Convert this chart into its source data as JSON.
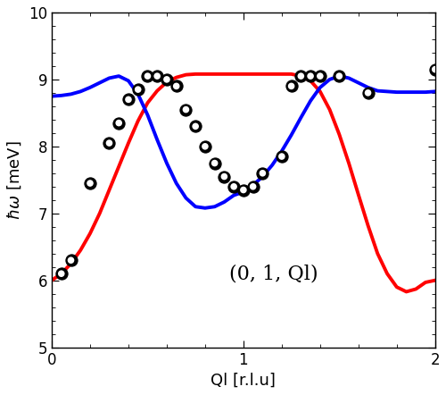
{
  "title": "",
  "xlabel": "Ql [r.l.u]",
  "ylabel": "$\\hbar\\omega$ [meV]",
  "annotation": "(0, 1, Ql)",
  "xlim": [
    0,
    2
  ],
  "ylim": [
    5,
    10
  ],
  "xticks": [
    0,
    1,
    2
  ],
  "yticks": [
    5,
    6,
    7,
    8,
    9,
    10
  ],
  "red_line_color": "#ff0000",
  "blue_line_color": "#0000ff",
  "scatter_x": [
    0.05,
    0.1,
    0.2,
    0.3,
    0.35,
    0.4,
    0.45,
    0.5,
    0.55,
    0.6,
    0.65,
    0.7,
    0.75,
    0.8,
    0.85,
    0.9,
    0.95,
    1.0,
    1.05,
    1.1,
    1.2,
    1.25,
    1.3,
    1.35,
    1.4,
    1.5,
    1.65,
    2.0
  ],
  "scatter_y": [
    6.1,
    6.3,
    7.45,
    8.05,
    8.35,
    8.7,
    8.85,
    9.05,
    9.05,
    9.0,
    8.9,
    8.55,
    8.3,
    8.0,
    7.75,
    7.55,
    7.4,
    7.35,
    7.4,
    7.6,
    7.85,
    8.9,
    9.05,
    9.05,
    9.05,
    9.05,
    8.8,
    9.15
  ],
  "red_x": [
    0.0,
    0.05,
    0.1,
    0.15,
    0.2,
    0.25,
    0.3,
    0.35,
    0.4,
    0.45,
    0.5,
    0.55,
    0.6,
    0.65,
    0.7,
    0.75,
    0.8,
    0.85,
    0.9,
    0.95,
    1.0,
    1.05,
    1.1,
    1.15,
    1.2,
    1.25,
    1.3,
    1.35,
    1.4,
    1.45,
    1.5,
    1.55,
    1.6,
    1.65,
    1.7,
    1.75,
    1.8,
    1.85,
    1.9,
    1.95,
    2.0
  ],
  "red_y": [
    6.0,
    6.1,
    6.25,
    6.45,
    6.7,
    7.0,
    7.35,
    7.7,
    8.05,
    8.38,
    8.65,
    8.83,
    8.96,
    9.03,
    9.07,
    9.08,
    9.08,
    9.08,
    9.08,
    9.08,
    9.08,
    9.08,
    9.08,
    9.08,
    9.08,
    9.08,
    9.05,
    8.98,
    8.82,
    8.55,
    8.18,
    7.75,
    7.28,
    6.82,
    6.4,
    6.1,
    5.9,
    5.83,
    5.87,
    5.97,
    6.0
  ],
  "blue_x": [
    0.0,
    0.05,
    0.1,
    0.15,
    0.2,
    0.25,
    0.3,
    0.35,
    0.4,
    0.45,
    0.5,
    0.55,
    0.6,
    0.65,
    0.7,
    0.75,
    0.8,
    0.85,
    0.9,
    0.95,
    1.0,
    1.05,
    1.1,
    1.15,
    1.2,
    1.25,
    1.3,
    1.35,
    1.4,
    1.45,
    1.5,
    1.55,
    1.6,
    1.65,
    1.7,
    1.75,
    1.8,
    1.85,
    1.9,
    1.95,
    2.0
  ],
  "blue_y": [
    8.75,
    8.76,
    8.78,
    8.82,
    8.88,
    8.95,
    9.02,
    9.05,
    8.98,
    8.78,
    8.47,
    8.1,
    7.75,
    7.45,
    7.23,
    7.1,
    7.08,
    7.1,
    7.17,
    7.27,
    7.32,
    7.42,
    7.55,
    7.72,
    7.93,
    8.17,
    8.43,
    8.68,
    8.88,
    9.0,
    9.05,
    9.02,
    8.95,
    8.88,
    8.83,
    8.82,
    8.81,
    8.81,
    8.81,
    8.81,
    8.82
  ],
  "line_width": 2.8,
  "scatter_size": 90,
  "scatter_inner_size": 30,
  "background_color": "#ffffff",
  "font_size_label": 13,
  "font_size_annot": 16,
  "font_size_tick": 12
}
